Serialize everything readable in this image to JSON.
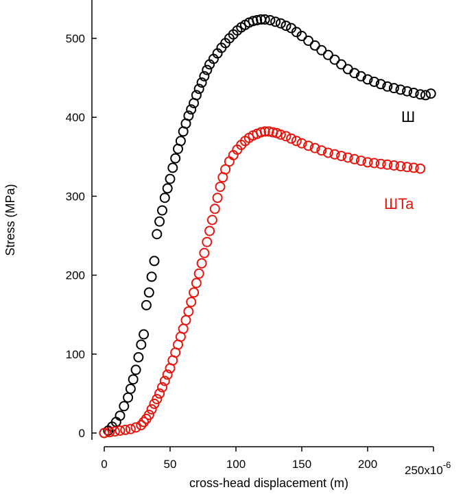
{
  "chart_data": {
    "type": "scatter",
    "xlabel": "cross-head displacement (m)",
    "ylabel": "Stress (MPa)",
    "x_multiplier_label": "x10",
    "x_multiplier_exponent": "-6",
    "xlim": [
      0,
      250
    ],
    "ylim": [
      0,
      550
    ],
    "x_ticks": [
      0,
      50,
      100,
      150,
      200,
      250
    ],
    "y_ticks": [
      0,
      100,
      200,
      300,
      400,
      500
    ],
    "grid": false,
    "legend": "inline labels near right end of each series",
    "series": [
      {
        "name": "Ш",
        "color": "#000000",
        "points": [
          [
            0,
            0
          ],
          [
            3,
            3
          ],
          [
            6,
            8
          ],
          [
            9,
            14
          ],
          [
            12,
            22
          ],
          [
            15,
            34
          ],
          [
            18,
            45
          ],
          [
            20,
            56
          ],
          [
            22,
            68
          ],
          [
            24,
            80
          ],
          [
            26,
            96
          ],
          [
            28,
            112
          ],
          [
            30,
            125
          ],
          [
            32,
            162
          ],
          [
            34,
            178
          ],
          [
            36,
            198
          ],
          [
            38,
            218
          ],
          [
            40,
            252
          ],
          [
            42,
            268
          ],
          [
            44,
            282
          ],
          [
            46,
            298
          ],
          [
            48,
            310
          ],
          [
            50,
            322
          ],
          [
            52,
            336
          ],
          [
            54,
            348
          ],
          [
            56,
            360
          ],
          [
            58,
            370
          ],
          [
            60,
            382
          ],
          [
            62,
            392
          ],
          [
            64,
            402
          ],
          [
            66,
            410
          ],
          [
            68,
            418
          ],
          [
            70,
            428
          ],
          [
            72,
            436
          ],
          [
            74,
            444
          ],
          [
            76,
            452
          ],
          [
            78,
            460
          ],
          [
            80,
            467
          ],
          [
            83,
            474
          ],
          [
            86,
            481
          ],
          [
            89,
            488
          ],
          [
            92,
            494
          ],
          [
            95,
            500
          ],
          [
            98,
            505
          ],
          [
            101,
            510
          ],
          [
            104,
            514
          ],
          [
            107,
            517
          ],
          [
            110,
            520
          ],
          [
            113,
            522
          ],
          [
            116,
            523
          ],
          [
            119,
            524
          ],
          [
            122,
            524
          ],
          [
            126,
            523
          ],
          [
            130,
            521
          ],
          [
            134,
            519
          ],
          [
            138,
            516
          ],
          [
            142,
            513
          ],
          [
            146,
            508
          ],
          [
            150,
            503
          ],
          [
            155,
            497
          ],
          [
            160,
            491
          ],
          [
            165,
            485
          ],
          [
            170,
            479
          ],
          [
            175,
            473
          ],
          [
            180,
            467
          ],
          [
            185,
            461
          ],
          [
            190,
            456
          ],
          [
            195,
            452
          ],
          [
            200,
            448
          ],
          [
            205,
            445
          ],
          [
            210,
            442
          ],
          [
            215,
            439
          ],
          [
            220,
            437
          ],
          [
            225,
            435
          ],
          [
            230,
            433
          ],
          [
            235,
            431
          ],
          [
            240,
            429
          ],
          [
            244,
            428
          ],
          [
            248,
            430
          ]
        ]
      },
      {
        "name": "ШTa",
        "color": "#e8140c",
        "points": [
          [
            0,
            0
          ],
          [
            4,
            1
          ],
          [
            8,
            2
          ],
          [
            12,
            3
          ],
          [
            16,
            4
          ],
          [
            20,
            5
          ],
          [
            24,
            7
          ],
          [
            28,
            10
          ],
          [
            30,
            14
          ],
          [
            32,
            18
          ],
          [
            34,
            23
          ],
          [
            36,
            30
          ],
          [
            38,
            37
          ],
          [
            40,
            43
          ],
          [
            42,
            50
          ],
          [
            44,
            58
          ],
          [
            46,
            66
          ],
          [
            48,
            74
          ],
          [
            50,
            82
          ],
          [
            52,
            92
          ],
          [
            54,
            102
          ],
          [
            56,
            112
          ],
          [
            58,
            122
          ],
          [
            60,
            132
          ],
          [
            62,
            143
          ],
          [
            64,
            154
          ],
          [
            66,
            166
          ],
          [
            68,
            178
          ],
          [
            70,
            190
          ],
          [
            72,
            202
          ],
          [
            74,
            215
          ],
          [
            76,
            228
          ],
          [
            78,
            242
          ],
          [
            80,
            256
          ],
          [
            82,
            270
          ],
          [
            84,
            284
          ],
          [
            86,
            298
          ],
          [
            88,
            312
          ],
          [
            90,
            324
          ],
          [
            92,
            334
          ],
          [
            95,
            344
          ],
          [
            98,
            352
          ],
          [
            101,
            359
          ],
          [
            104,
            365
          ],
          [
            107,
            370
          ],
          [
            110,
            374
          ],
          [
            113,
            377
          ],
          [
            116,
            379
          ],
          [
            119,
            381
          ],
          [
            122,
            382
          ],
          [
            125,
            382
          ],
          [
            128,
            381
          ],
          [
            131,
            380
          ],
          [
            134,
            378
          ],
          [
            138,
            376
          ],
          [
            142,
            373
          ],
          [
            146,
            370
          ],
          [
            150,
            367
          ],
          [
            155,
            364
          ],
          [
            160,
            361
          ],
          [
            165,
            358
          ],
          [
            170,
            355
          ],
          [
            175,
            353
          ],
          [
            180,
            351
          ],
          [
            185,
            349
          ],
          [
            190,
            347
          ],
          [
            195,
            345
          ],
          [
            200,
            343
          ],
          [
            205,
            342
          ],
          [
            210,
            341
          ],
          [
            215,
            340
          ],
          [
            220,
            339
          ],
          [
            225,
            338
          ],
          [
            230,
            337
          ],
          [
            235,
            336
          ],
          [
            240,
            335
          ]
        ]
      }
    ]
  }
}
